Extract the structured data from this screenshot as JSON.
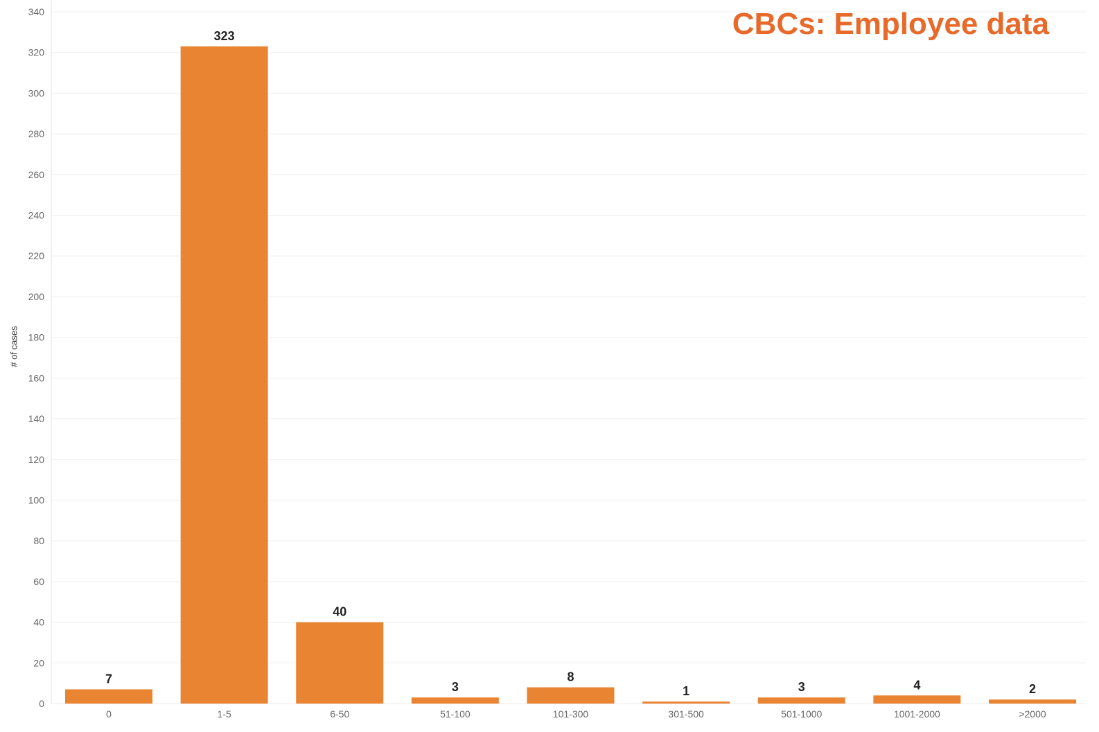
{
  "chart_data": {
    "type": "bar",
    "title": "CBCs: Employee data",
    "xlabel": "",
    "ylabel": "# of cases",
    "categories": [
      "0",
      "1-5",
      "6-50",
      "51-100",
      "101-300",
      "301-500",
      "501-1000",
      "1001-2000",
      ">2000"
    ],
    "values": [
      7,
      323,
      40,
      3,
      8,
      1,
      3,
      4,
      2
    ],
    "data_labels": [
      "7",
      "323",
      "40",
      "3",
      "8",
      "1",
      "3",
      "4",
      "2"
    ],
    "y_ticks": [
      0,
      20,
      40,
      60,
      80,
      100,
      120,
      140,
      160,
      180,
      200,
      220,
      240,
      260,
      280,
      300,
      320,
      340
    ],
    "ylim": [
      0,
      340
    ],
    "grid": true,
    "legend": "none"
  },
  "colors": {
    "bar": "#E88432",
    "title": "#E8692A",
    "grid": "#EEEEEE",
    "tick_label": "#666666",
    "data_label": "#222222"
  }
}
